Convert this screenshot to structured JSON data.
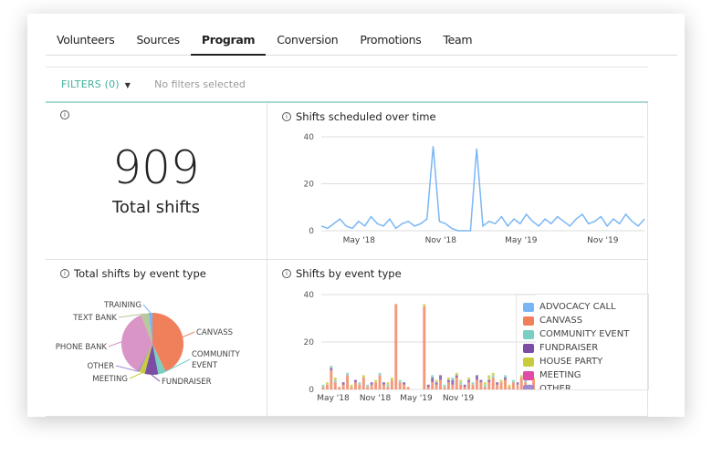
{
  "tabs": [
    {
      "label": "Volunteers"
    },
    {
      "label": "Sources"
    },
    {
      "label": "Program",
      "active": true
    },
    {
      "label": "Conversion"
    },
    {
      "label": "Promotions"
    },
    {
      "label": "Team"
    }
  ],
  "filters": {
    "toggle_label": "FILTERS (0)",
    "status": "No filters selected"
  },
  "total": {
    "value": "909",
    "label": "Total shifts",
    "info_icon": "info-icon"
  },
  "line_title": "Shifts scheduled over time",
  "pie_title": "Total shifts by event type",
  "bar_title": "Shifts by event type",
  "colors": {
    "accent": "#3fb0a0",
    "line": "#7ab6f5"
  },
  "legend": [
    {
      "label": "ADVOCACY CALL",
      "color": "#7ab6f5"
    },
    {
      "label": "CANVASS",
      "color": "#f07f5c"
    },
    {
      "label": "COMMUNITY EVENT",
      "color": "#79cfc3"
    },
    {
      "label": "FUNDRAISER",
      "color": "#7b4ea3"
    },
    {
      "label": "HOUSE PARTY",
      "color": "#c8cc3c"
    },
    {
      "label": "MEETING",
      "color": "#e04aa8"
    },
    {
      "label": "OTHER",
      "color": "#a08ccc"
    }
  ],
  "chart_data": [
    {
      "type": "line",
      "title": "Shifts scheduled over time",
      "ylim": [
        0,
        40
      ],
      "yticks": [
        0,
        20,
        40
      ],
      "xticks": [
        {
          "date": "2018-05-01",
          "label": "May '18"
        },
        {
          "date": "2018-11-01",
          "label": "Nov '18"
        },
        {
          "date": "2019-05-01",
          "label": "May '19"
        },
        {
          "date": "2019-11-01",
          "label": "Nov '19"
        }
      ],
      "x": [
        "2018-02-05",
        "2018-02-19",
        "2018-03-05",
        "2018-03-19",
        "2018-04-02",
        "2018-04-16",
        "2018-04-30",
        "2018-05-14",
        "2018-05-28",
        "2018-06-11",
        "2018-06-25",
        "2018-07-09",
        "2018-07-23",
        "2018-08-06",
        "2018-08-20",
        "2018-09-03",
        "2018-09-17",
        "2018-10-01",
        "2018-10-15",
        "2018-10-29",
        "2018-11-12",
        "2018-11-26",
        "2018-12-10",
        "2018-12-24",
        "2019-01-07",
        "2019-01-21",
        "2019-02-04",
        "2019-02-18",
        "2019-03-04",
        "2019-03-18",
        "2019-04-01",
        "2019-04-15",
        "2019-04-29",
        "2019-05-13",
        "2019-05-27",
        "2019-06-10",
        "2019-06-24",
        "2019-07-08",
        "2019-07-22",
        "2019-08-05",
        "2019-08-19",
        "2019-09-02",
        "2019-09-16",
        "2019-09-30",
        "2019-10-14",
        "2019-10-28",
        "2019-11-11",
        "2019-11-25",
        "2019-12-09",
        "2019-12-23",
        "2020-01-06",
        "2020-01-20",
        "2020-02-03"
      ],
      "values": [
        2,
        1,
        3,
        5,
        2,
        1,
        4,
        2,
        6,
        3,
        2,
        5,
        1,
        3,
        4,
        2,
        3,
        5,
        36,
        4,
        3,
        1,
        0,
        0,
        0,
        35,
        2,
        4,
        3,
        6,
        2,
        5,
        3,
        7,
        4,
        2,
        5,
        3,
        6,
        4,
        2,
        5,
        7,
        3,
        4,
        6,
        2,
        5,
        3,
        7,
        4,
        2,
        5
      ]
    },
    {
      "type": "pie",
      "title": "Total shifts by event type",
      "unit": "percent",
      "slices": [
        {
          "label": "CANVASS",
          "value": 43,
          "color": "#f07f5c"
        },
        {
          "label": "COMMUNITY EVENT",
          "value": 4,
          "color": "#79cfc3"
        },
        {
          "label": "FUNDRAISER",
          "value": 7,
          "color": "#7b4ea3"
        },
        {
          "label": "MEETING",
          "value": 3,
          "color": "#c8cc3c"
        },
        {
          "label": "OTHER",
          "value": 1,
          "color": "#a08ccc"
        },
        {
          "label": "PHONE BANK",
          "value": 36,
          "color": "#d895c6"
        },
        {
          "label": "TEXT BANK",
          "value": 4,
          "color": "#b5c99a"
        },
        {
          "label": "TRAINING",
          "value": 2,
          "color": "#7ab6f5"
        }
      ]
    },
    {
      "type": "bar",
      "stacked": true,
      "title": "Shifts by event type",
      "ylim": [
        0,
        40
      ],
      "yticks": [
        0,
        20,
        40
      ],
      "legend": "right",
      "xticks": [
        "May '18",
        "Nov '18",
        "May '19",
        "Nov '19"
      ],
      "series": [
        {
          "name": "CANVASS",
          "values": [
            1,
            2,
            8,
            3,
            1,
            2,
            6,
            1,
            3,
            2,
            5,
            1,
            2,
            3,
            6,
            2,
            1,
            4,
            36,
            3,
            2,
            1,
            0,
            0,
            0,
            35,
            1,
            3,
            2,
            4,
            1,
            3,
            2,
            5,
            2,
            1,
            3,
            2,
            4,
            3,
            1,
            3,
            5,
            2,
            3,
            4,
            1,
            3,
            2,
            5,
            3,
            1,
            4
          ]
        },
        {
          "name": "FUNDRAISER",
          "values": [
            0,
            0,
            1,
            0,
            0,
            1,
            0,
            0,
            1,
            0,
            0,
            0,
            1,
            0,
            0,
            1,
            0,
            0,
            0,
            0,
            1,
            0,
            0,
            0,
            0,
            0,
            1,
            2,
            1,
            2,
            0,
            1,
            2,
            1,
            0,
            1,
            1,
            0,
            2,
            1,
            0,
            1,
            0,
            1,
            0,
            1,
            0,
            0,
            1,
            0,
            0,
            1,
            0
          ]
        },
        {
          "name": "COMMUNITY EVENT",
          "values": [
            1,
            0,
            1,
            1,
            0,
            0,
            1,
            0,
            0,
            1,
            0,
            1,
            0,
            0,
            1,
            0,
            1,
            0,
            0,
            1,
            0,
            0,
            0,
            0,
            0,
            0,
            0,
            1,
            0,
            0,
            1,
            0,
            1,
            0,
            1,
            0,
            0,
            1,
            0,
            0,
            1,
            0,
            1,
            0,
            0,
            1,
            0,
            1,
            0,
            0,
            1,
            0,
            0
          ]
        },
        {
          "name": "HOUSE PARTY",
          "values": [
            0,
            1,
            0,
            1,
            0,
            0,
            0,
            1,
            0,
            0,
            1,
            0,
            0,
            1,
            0,
            0,
            1,
            1,
            0,
            0,
            0,
            0,
            0,
            0,
            0,
            1,
            0,
            0,
            1,
            0,
            0,
            1,
            0,
            1,
            1,
            0,
            1,
            0,
            0,
            0,
            1,
            2,
            1,
            0,
            1,
            0,
            1,
            0,
            0,
            1,
            0,
            0,
            1
          ]
        }
      ]
    }
  ]
}
